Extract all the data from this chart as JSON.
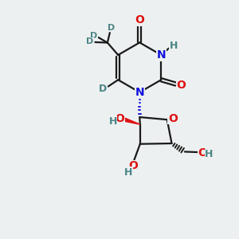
{
  "fig_bg": "#edf0f0",
  "bond_color": "#1a1a1a",
  "bond_width": 1.6,
  "atom_colors": {
    "N": "#1212dd",
    "O": "#dd1212",
    "D": "#4a8585",
    "H": "#4a8585",
    "C": "#1a1a1a"
  },
  "font_size_large": 10,
  "font_size_med": 9,
  "font_size_small": 8
}
